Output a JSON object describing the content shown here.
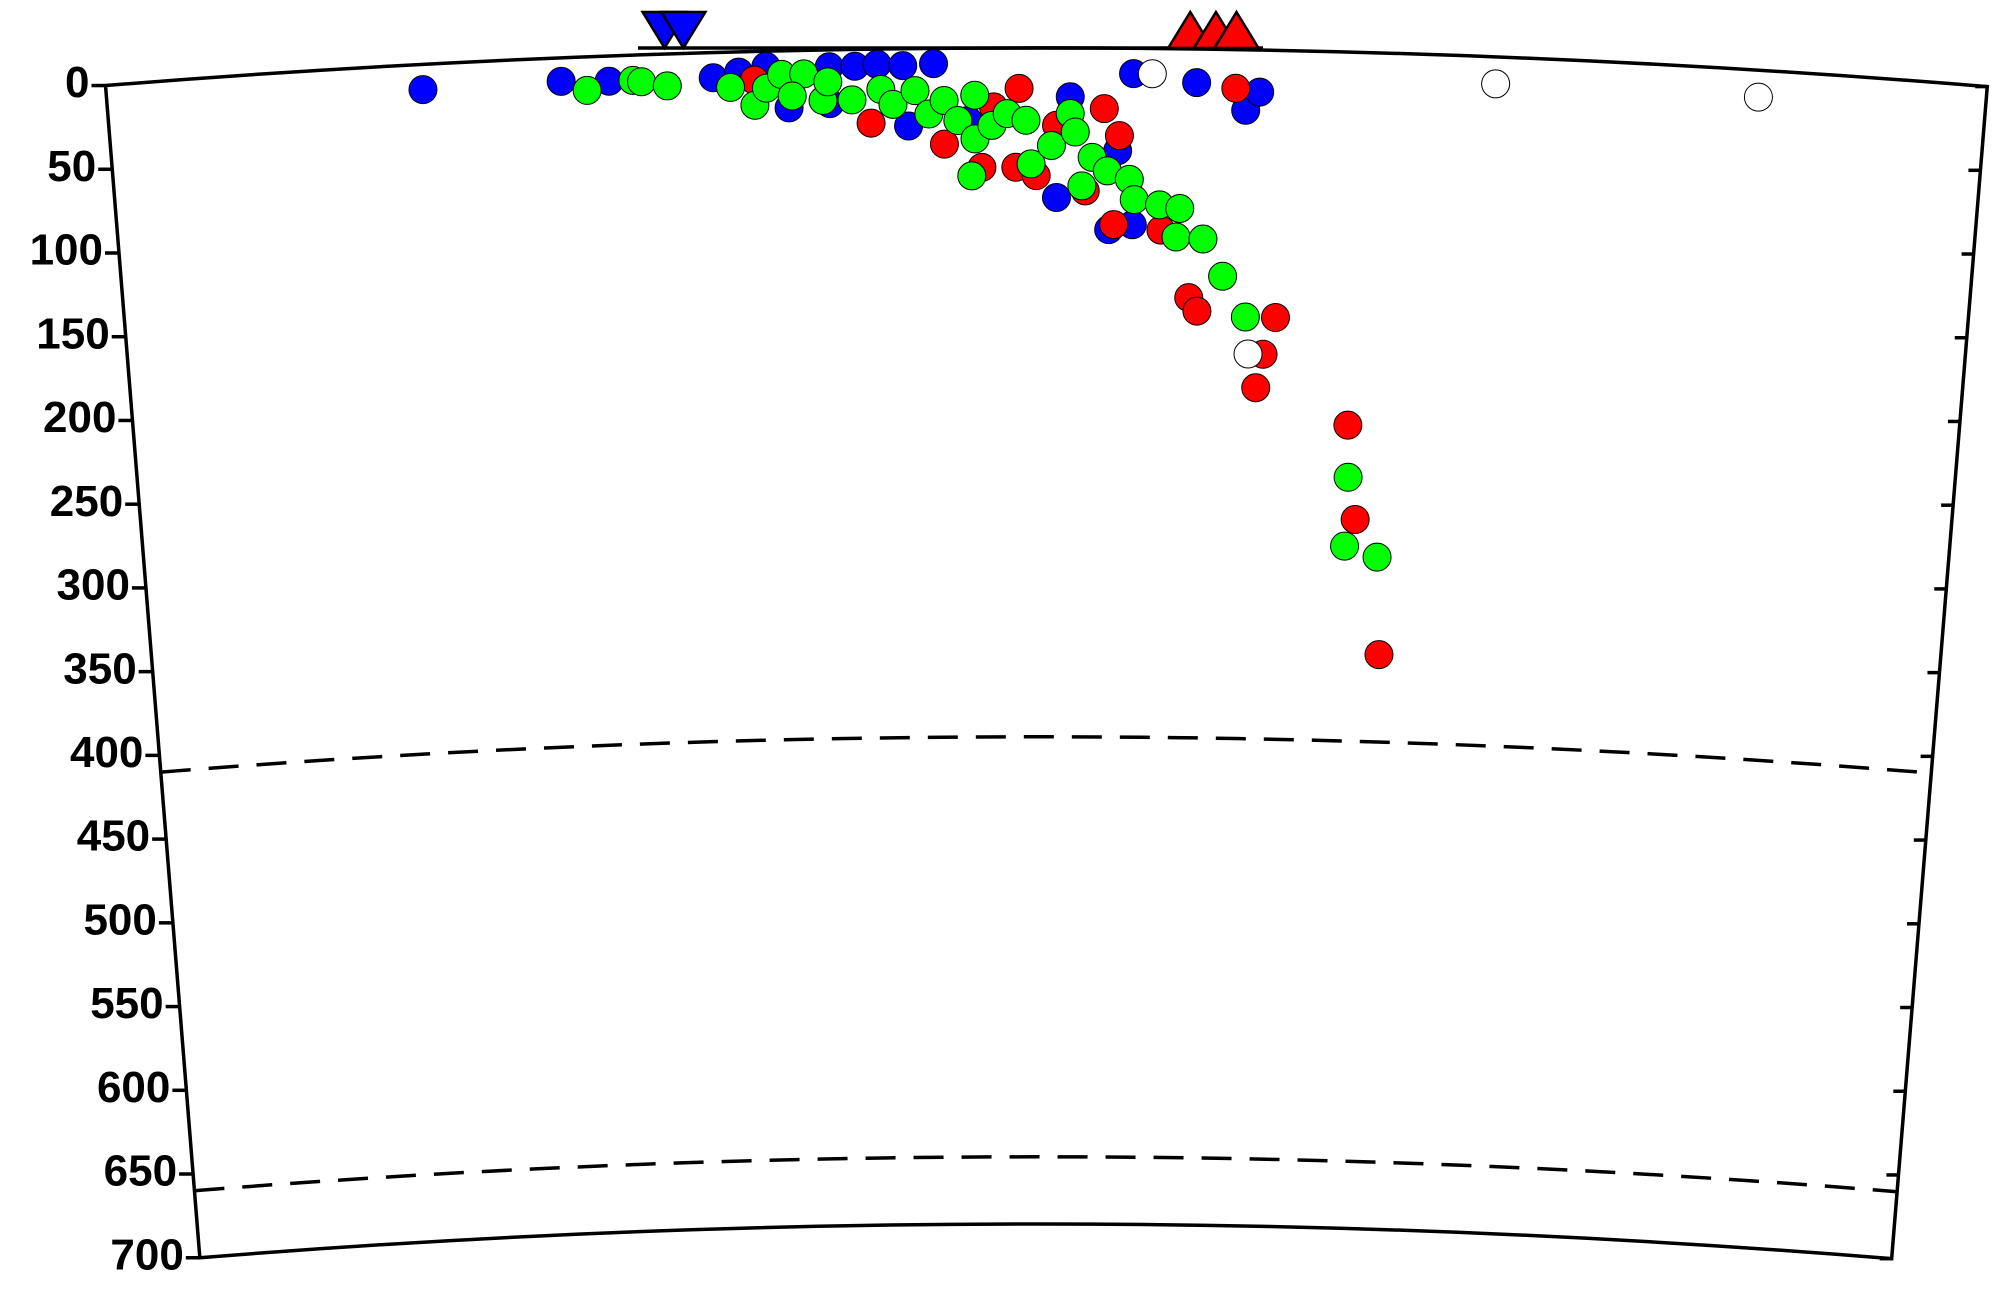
{
  "chart_data": {
    "type": "scatter",
    "xlim": [
      0,
      1100
    ],
    "ylim": [
      0,
      700
    ],
    "yticks": [
      0,
      50,
      100,
      150,
      200,
      250,
      300,
      350,
      400,
      450,
      500,
      550,
      600,
      650,
      700
    ],
    "reference_depths": [
      410,
      660
    ],
    "series": [
      {
        "color": "#0000ff",
        "x": [
          185,
          266,
          294,
          355,
          370,
          386,
          399,
          423,
          438,
          451,
          466,
          484,
          469,
          564,
          556,
          587,
          601,
          601,
          638,
          667,
          675,
          423,
          504,
          592
        ],
        "values": [
          15,
          14,
          15,
          15,
          12,
          9,
          34,
          10,
          10,
          9,
          10,
          9,
          46,
          29,
          89,
          108,
          105,
          15,
          20,
          36,
          25,
          32,
          43,
          61
        ]
      },
      {
        "color": "#ff0000",
        "x": [
          534,
          519,
          447,
          490,
          512,
          532,
          544,
          573,
          584,
          593,
          590,
          618,
          635,
          640,
          661,
          680,
          687,
          676,
          732,
          738,
          755,
          379,
          556
        ],
        "values": [
          24,
          35,
          44,
          57,
          71,
          71,
          76,
          85,
          36,
          52,
          105,
          108,
          148,
          156,
          23,
          181,
          159,
          201,
          222,
          278,
          358,
          17,
          46
        ]
      },
      {
        "color": "#00ff00",
        "x": [
          281,
          308,
          313,
          328,
          365,
          379,
          386,
          395,
          408,
          401,
          419,
          422,
          436,
          453,
          460,
          473,
          481,
          490,
          498,
          508,
          508,
          506,
          518,
          527,
          538,
          541,
          553,
          564,
          567,
          571,
          577,
          586,
          599,
          602,
          617,
          629,
          627,
          643,
          655,
          669,
          733,
          732,
          752
        ],
        "values": [
          20,
          15,
          16,
          19,
          21,
          32,
          22,
          14,
          14,
          27,
          30,
          19,
          30,
          24,
          33,
          25,
          39,
          31,
          43,
          28,
          54,
          76,
          46,
          39,
          43,
          69,
          58,
          39,
          50,
          82,
          65,
          73,
          78,
          90,
          93,
          95,
          112,
          113,
          135,
          159,
          253,
          294,
          300
        ]
      },
      {
        "color": "#ffffff",
        "x": [
          612,
          813,
          967,
          671
        ],
        "values": [
          15,
          16,
          16,
          181
        ]
      }
    ],
    "symbols": [
      {
        "shape": "inverted-triangle",
        "color": "#0000ff",
        "x": [
          327,
          338
        ]
      },
      {
        "shape": "triangle",
        "color": "#ff0000",
        "x": [
          634,
          649,
          661
        ]
      }
    ]
  }
}
